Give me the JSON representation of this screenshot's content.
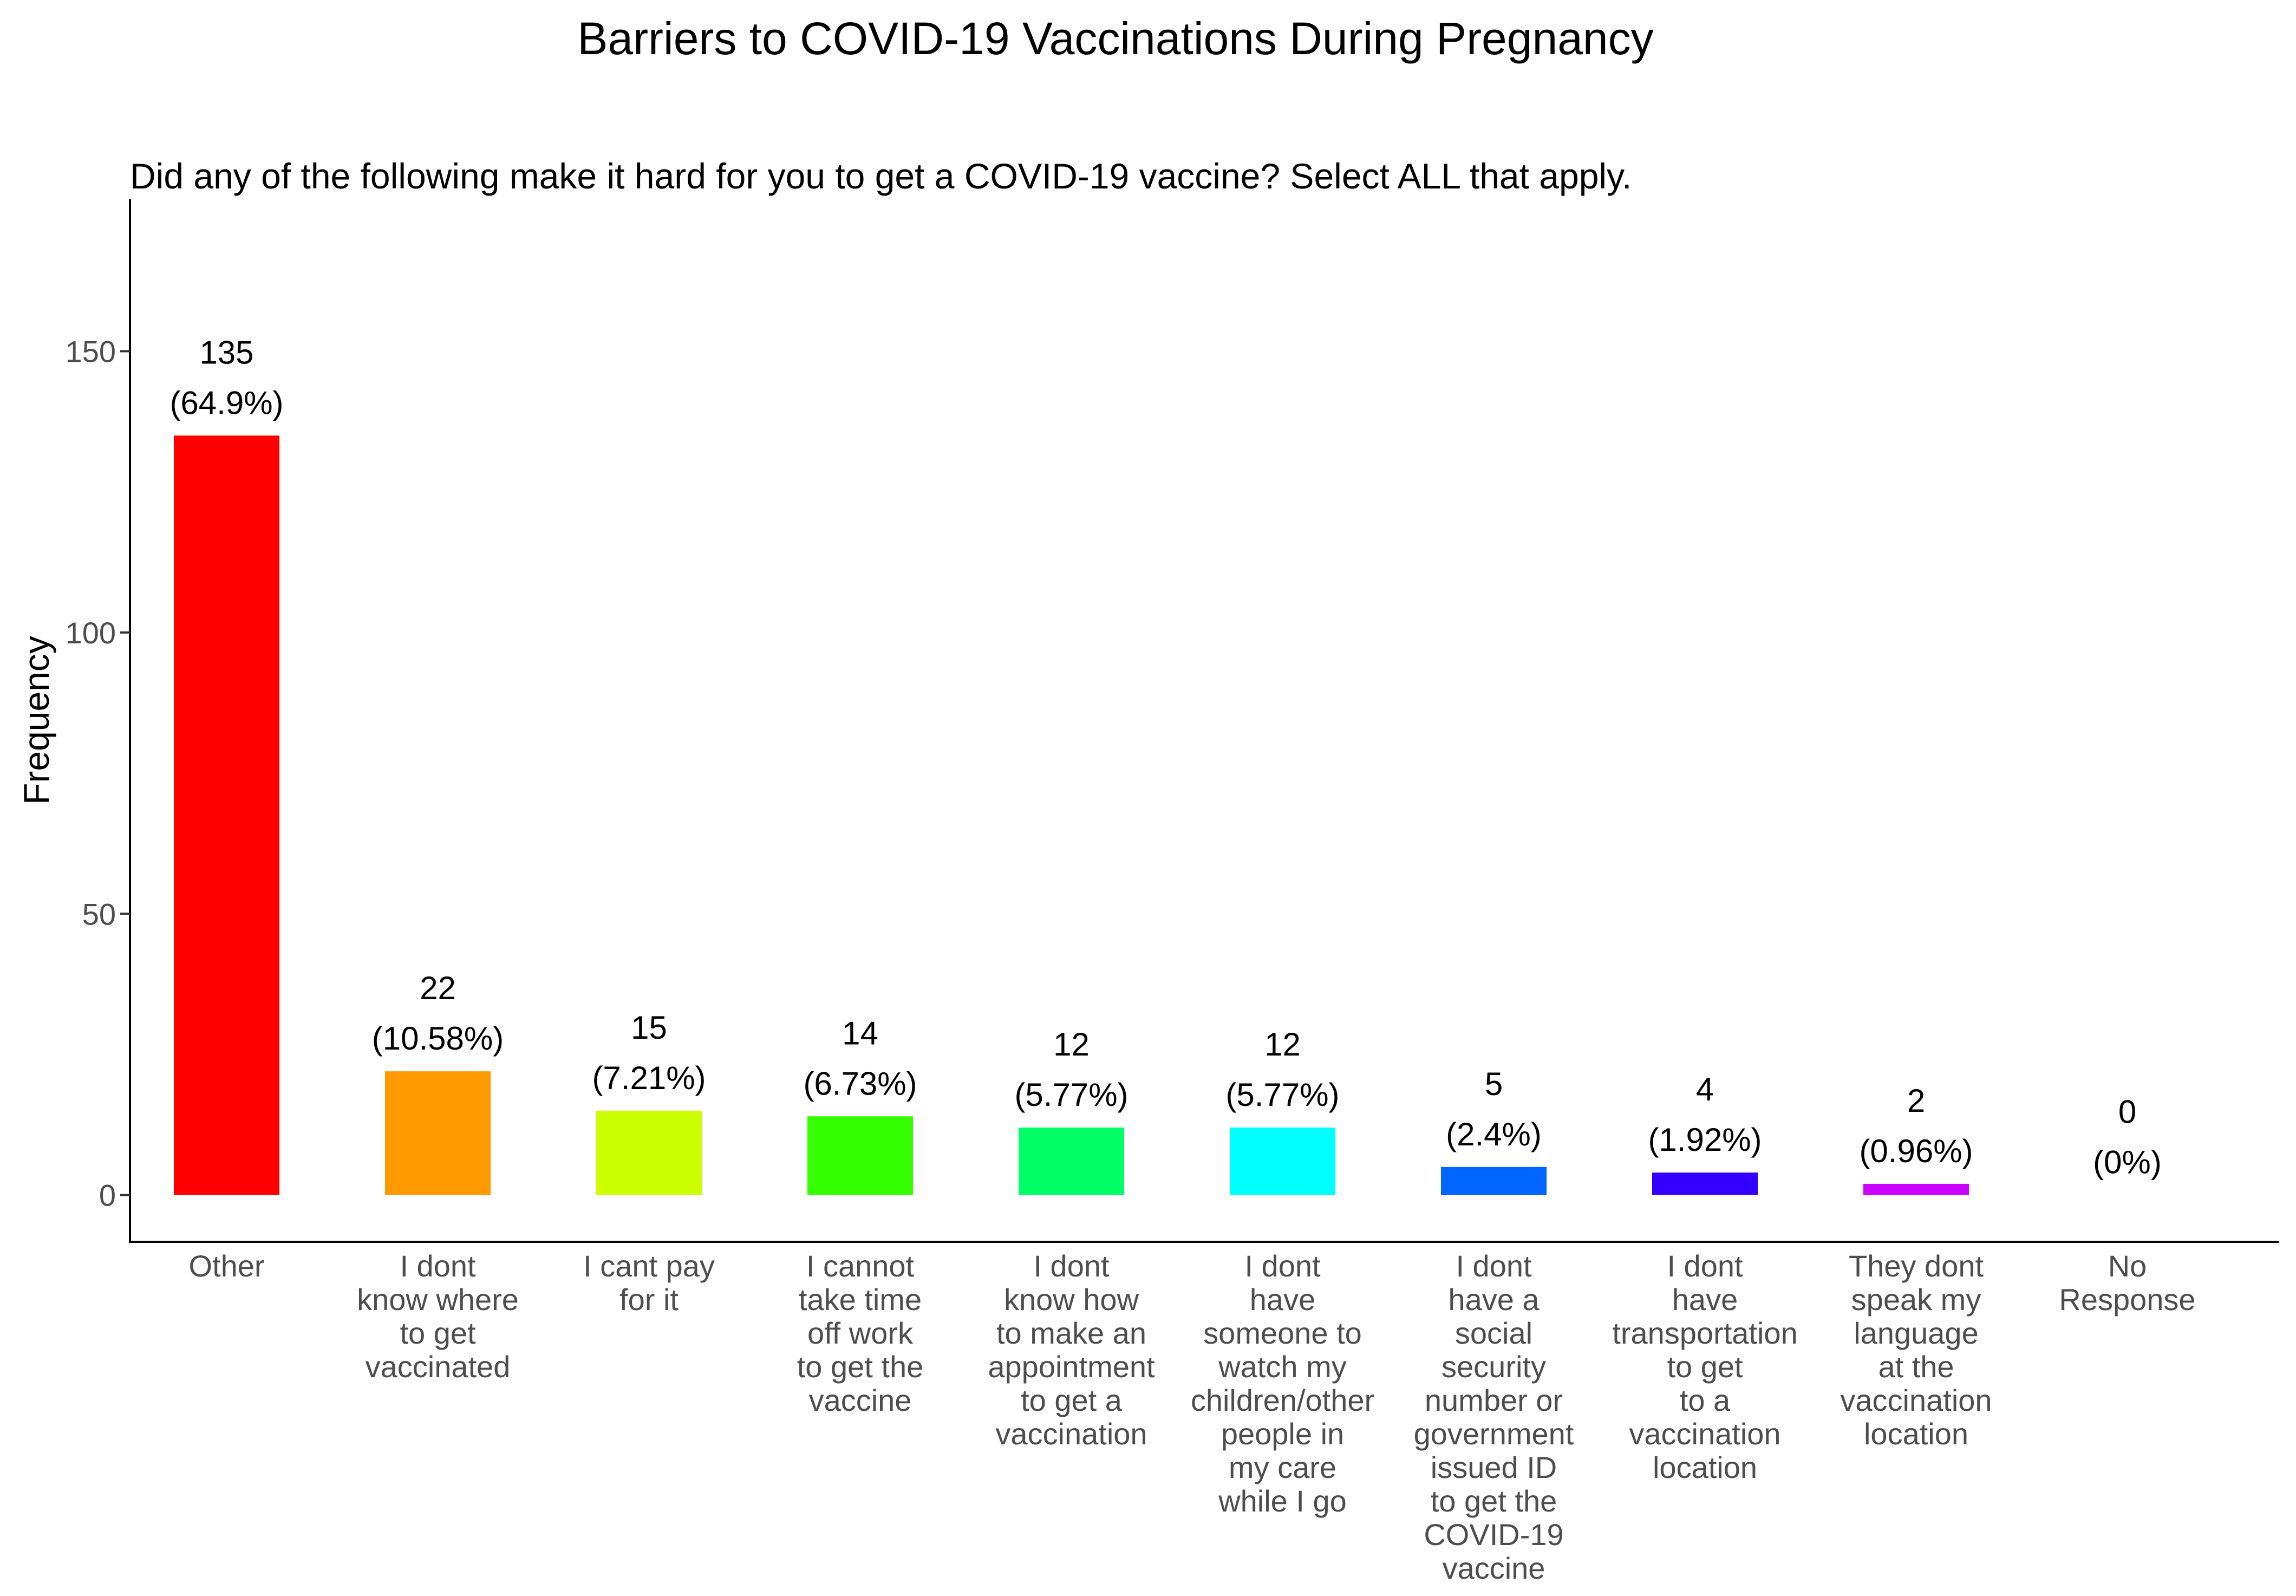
{
  "chart_data": {
    "type": "bar",
    "title": "Barriers to COVID-19 Vaccinations During Pregnancy",
    "subtitle": "Did any of the following make it hard for you to get a COVID-19 vaccine? Select ALL that apply.",
    "xlabel": "",
    "ylabel": "Frequency",
    "ylim": [
      -8.5,
      177
    ],
    "yticks": [
      0,
      50,
      100,
      150
    ],
    "grid": false,
    "legend": "none",
    "categories": [
      [
        "Other"
      ],
      [
        "I dont",
        "know where",
        "to get",
        "vaccinated"
      ],
      [
        "I cant pay",
        "for it"
      ],
      [
        "I cannot",
        "take time",
        "off work",
        "to get the",
        "vaccine"
      ],
      [
        "I dont",
        "know how",
        "to make an",
        "appointment",
        "to get a",
        "vaccination"
      ],
      [
        "I dont",
        "have",
        "someone to",
        "watch my",
        "children/other",
        "people in",
        "my care",
        "while I go"
      ],
      [
        "I dont",
        "have a",
        "social",
        "security",
        "number or",
        "government",
        "issued ID",
        "to get the",
        "COVID-19",
        "vaccine"
      ],
      [
        "I dont",
        "have",
        "transportation",
        "to get",
        "to a",
        "vaccination",
        "location"
      ],
      [
        "They dont",
        "speak my",
        "language",
        "at the",
        "vaccination",
        "location"
      ],
      [
        "No",
        "Response"
      ]
    ],
    "values": [
      135,
      22,
      15,
      14,
      12,
      12,
      5,
      4,
      2,
      0
    ],
    "percent_labels": [
      "(64.9%)",
      "(10.58%)",
      "(7.21%)",
      "(6.73%)",
      "(5.77%)",
      "(5.77%)",
      "(2.4%)",
      "(1.92%)",
      "(0.96%)",
      "(0%)"
    ],
    "colors": [
      "#ff0000",
      "#ff9900",
      "#ccff00",
      "#33ff00",
      "#00ff66",
      "#00ffff",
      "#0066ff",
      "#3300ff",
      "#cc00ff",
      "#ff0099"
    ]
  }
}
